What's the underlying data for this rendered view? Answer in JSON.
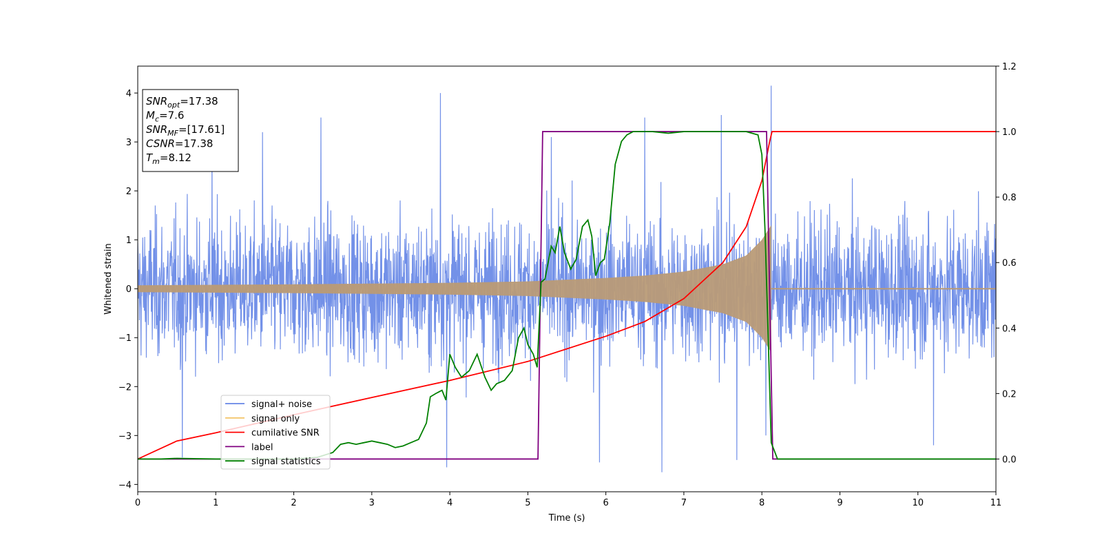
{
  "chart_data": {
    "type": "line",
    "xlabel": "Time (s)",
    "ylabel": "Whitened strain",
    "xlim": [
      0,
      11
    ],
    "ylim_left": [
      -4.15,
      4.55
    ],
    "ylim_right": [
      -0.1,
      1.2
    ],
    "xticks": [
      0,
      1,
      2,
      3,
      4,
      5,
      6,
      7,
      8,
      9,
      10,
      11
    ],
    "yticks_left": [
      -4,
      -3,
      -2,
      -1,
      0,
      1,
      2,
      3,
      4
    ],
    "yticks_right": [
      "0.0",
      "0.2",
      "0.4",
      "0.6",
      "0.8",
      "1.0",
      "1.2"
    ],
    "legend_position": "lower-left",
    "annotation": {
      "lines": [
        {
          "base": "SNR",
          "sub": "opt",
          "value": "=17.38"
        },
        {
          "base": "M",
          "sub": "c",
          "value": "=7.6"
        },
        {
          "base": "SNR",
          "sub": "MF",
          "value": "=[17.61]"
        },
        {
          "base": "CSNR",
          "sub": "",
          "value": "=17.38"
        },
        {
          "base": "T",
          "sub": "m",
          "value": "=8.12"
        }
      ]
    },
    "colors": {
      "noise": "#6485e6",
      "signal": "#f3c56b",
      "overlap": "#b99b77",
      "csnr": "#ff0000",
      "label": "#800080",
      "stats": "#008000"
    },
    "series": [
      {
        "name": "signal+ noise",
        "axis": "left",
        "kind": "noise-band",
        "envelope": {
          "x": [
            0,
            1,
            2,
            3,
            4,
            5,
            6,
            7,
            8,
            8.12,
            9,
            10,
            11
          ],
          "typical_abs": [
            1.6,
            1.6,
            1.6,
            1.6,
            1.6,
            1.6,
            1.6,
            1.65,
            1.7,
            1.6,
            1.6,
            1.6,
            1.6
          ]
        },
        "peaks": [
          {
            "x": 0.95,
            "y": 3.0
          },
          {
            "x": 1.6,
            "y": 3.2
          },
          {
            "x": 2.35,
            "y": 3.5
          },
          {
            "x": 3.88,
            "y": 4.0
          },
          {
            "x": 3.96,
            "y": -3.65
          },
          {
            "x": 5.3,
            "y": 3.1
          },
          {
            "x": 5.92,
            "y": -3.55
          },
          {
            "x": 6.5,
            "y": 3.5
          },
          {
            "x": 6.72,
            "y": -3.75
          },
          {
            "x": 7.48,
            "y": 3.55
          },
          {
            "x": 7.68,
            "y": -3.5
          },
          {
            "x": 8.12,
            "y": 4.15
          },
          {
            "x": 8.05,
            "y": -3.0
          },
          {
            "x": 0.57,
            "y": -3.45
          },
          {
            "x": 10.2,
            "y": -3.2
          }
        ]
      },
      {
        "name": "signal only",
        "axis": "left",
        "kind": "chirp",
        "envelope": {
          "x": [
            0,
            2,
            4,
            5,
            6,
            6.5,
            7,
            7.5,
            7.8,
            8.0,
            8.12
          ],
          "amplitude": [
            0.07,
            0.09,
            0.12,
            0.15,
            0.22,
            0.27,
            0.35,
            0.5,
            0.68,
            1.0,
            1.3
          ]
        },
        "after_end_value": 0
      },
      {
        "name": "cumilative SNR",
        "axis": "right",
        "x": [
          0,
          0.5,
          1,
          2,
          3,
          4,
          5,
          6,
          6.5,
          7,
          7.5,
          7.8,
          8.0,
          8.1,
          8.13,
          11
        ],
        "y": [
          0.0,
          0.055,
          0.08,
          0.135,
          0.188,
          0.24,
          0.298,
          0.375,
          0.42,
          0.49,
          0.6,
          0.71,
          0.85,
          0.97,
          1.0,
          1.0
        ]
      },
      {
        "name": "label",
        "axis": "right",
        "x": [
          0,
          5.13,
          5.19,
          8.06,
          8.14,
          11
        ],
        "y": [
          0.0,
          0.0,
          1.0,
          1.0,
          0.0,
          0.0
        ]
      },
      {
        "name": "signal statistics",
        "axis": "right",
        "x": [
          0,
          0.3,
          0.5,
          1,
          2,
          2.3,
          2.5,
          2.6,
          2.7,
          2.8,
          2.9,
          3.0,
          3.1,
          3.2,
          3.3,
          3.4,
          3.5,
          3.6,
          3.7,
          3.75,
          3.82,
          3.9,
          3.95,
          4.0,
          4.07,
          4.15,
          4.25,
          4.35,
          4.45,
          4.53,
          4.6,
          4.7,
          4.8,
          4.88,
          4.95,
          5.0,
          5.07,
          5.12,
          5.17,
          5.22,
          5.3,
          5.35,
          5.41,
          5.47,
          5.55,
          5.62,
          5.7,
          5.77,
          5.82,
          5.87,
          5.93,
          5.98,
          6.05,
          6.12,
          6.2,
          6.27,
          6.35,
          6.45,
          6.6,
          6.8,
          7.0,
          7.2,
          7.5,
          7.8,
          7.95,
          8.0,
          8.04,
          8.08,
          8.12,
          8.2,
          9,
          10,
          11
        ],
        "y": [
          0.0,
          0.0,
          0.002,
          0.0,
          0.0,
          0.005,
          0.02,
          0.045,
          0.05,
          0.045,
          0.05,
          0.055,
          0.05,
          0.045,
          0.035,
          0.04,
          0.05,
          0.06,
          0.11,
          0.19,
          0.2,
          0.21,
          0.18,
          0.32,
          0.28,
          0.25,
          0.27,
          0.32,
          0.25,
          0.21,
          0.23,
          0.24,
          0.27,
          0.37,
          0.4,
          0.35,
          0.32,
          0.28,
          0.54,
          0.55,
          0.65,
          0.63,
          0.71,
          0.63,
          0.58,
          0.61,
          0.71,
          0.73,
          0.68,
          0.56,
          0.6,
          0.61,
          0.72,
          0.9,
          0.97,
          0.99,
          1.0,
          1.0,
          1.0,
          0.995,
          1.0,
          1.0,
          1.0,
          1.0,
          0.99,
          0.93,
          0.7,
          0.38,
          0.05,
          0.0,
          0.0,
          0.0,
          0.0
        ]
      }
    ]
  }
}
